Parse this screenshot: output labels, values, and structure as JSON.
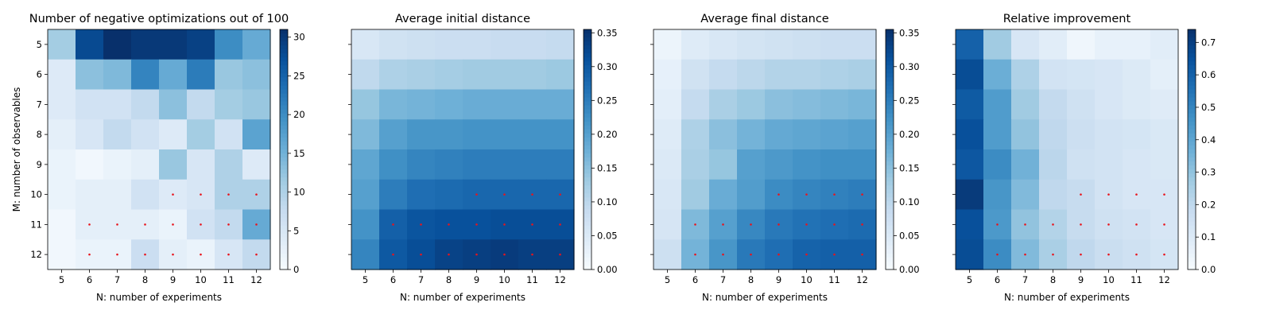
{
  "figure": {
    "colormap": "Blues",
    "marker_color": "#e8141c",
    "x_categories": [
      5,
      6,
      7,
      8,
      9,
      10,
      11,
      12
    ],
    "y_categories": [
      5,
      6,
      7,
      8,
      9,
      10,
      11,
      12
    ],
    "xlabel": "N: number of experiments",
    "ylabel": "M: number of observables"
  },
  "chart_data": [
    {
      "type": "heatmap",
      "title": "Number of negative optimizations out of 100",
      "xlabel": "N: number of experiments",
      "ylabel": "M: number of observables",
      "vmin": 0,
      "vmax": 31,
      "colorbar_ticks": [
        "0",
        "5",
        "10",
        "15",
        "20",
        "25",
        "30"
      ],
      "colorbar_tick_values": [
        0,
        5,
        10,
        15,
        20,
        25,
        30
      ],
      "values": [
        [
          11,
          28,
          31,
          30,
          30,
          29,
          20,
          16
        ],
        [
          4,
          13,
          14,
          21,
          16,
          22,
          12,
          13
        ],
        [
          4,
          6,
          6,
          8,
          13,
          8,
          11,
          12
        ],
        [
          3,
          5,
          8,
          6,
          4,
          11,
          6,
          17
        ],
        [
          2,
          1,
          2,
          3,
          12,
          5,
          10,
          4
        ],
        [
          2,
          3,
          3,
          6,
          4,
          5,
          10,
          10
        ],
        [
          1,
          3,
          3,
          3,
          2,
          6,
          8,
          16
        ],
        [
          1,
          2,
          2,
          7,
          3,
          2,
          5,
          8
        ]
      ],
      "markers": [
        [
          false,
          false,
          false,
          false,
          false,
          false,
          false,
          false
        ],
        [
          false,
          false,
          false,
          false,
          false,
          false,
          false,
          false
        ],
        [
          false,
          false,
          false,
          false,
          false,
          false,
          false,
          false
        ],
        [
          false,
          false,
          false,
          false,
          false,
          false,
          false,
          false
        ],
        [
          false,
          false,
          false,
          false,
          false,
          false,
          false,
          false
        ],
        [
          false,
          false,
          false,
          false,
          true,
          true,
          true,
          true
        ],
        [
          false,
          true,
          true,
          true,
          true,
          true,
          true,
          true
        ],
        [
          false,
          true,
          true,
          true,
          true,
          true,
          true,
          true
        ]
      ]
    },
    {
      "type": "heatmap",
      "title": "Average initial distance",
      "xlabel": "N: number of experiments",
      "ylabel": "",
      "vmin": 0,
      "vmax": 0.355,
      "colorbar_ticks": [
        "0.00",
        "0.05",
        "0.10",
        "0.15",
        "0.20",
        "0.25",
        "0.30",
        "0.35"
      ],
      "colorbar_tick_values": [
        0,
        0.05,
        0.1,
        0.15,
        0.2,
        0.25,
        0.3,
        0.35
      ],
      "values": [
        [
          0.055,
          0.07,
          0.075,
          0.08,
          0.08,
          0.085,
          0.085,
          0.09
        ],
        [
          0.095,
          0.115,
          0.12,
          0.125,
          0.13,
          0.13,
          0.13,
          0.135
        ],
        [
          0.14,
          0.165,
          0.17,
          0.175,
          0.18,
          0.18,
          0.18,
          0.18
        ],
        [
          0.16,
          0.2,
          0.215,
          0.215,
          0.22,
          0.22,
          0.22,
          0.22
        ],
        [
          0.19,
          0.225,
          0.24,
          0.245,
          0.25,
          0.25,
          0.25,
          0.25
        ],
        [
          0.2,
          0.25,
          0.27,
          0.275,
          0.28,
          0.28,
          0.28,
          0.28
        ],
        [
          0.22,
          0.29,
          0.305,
          0.31,
          0.31,
          0.315,
          0.315,
          0.315
        ],
        [
          0.24,
          0.3,
          0.315,
          0.33,
          0.335,
          0.34,
          0.335,
          0.335
        ]
      ],
      "markers": [
        [
          false,
          false,
          false,
          false,
          false,
          false,
          false,
          false
        ],
        [
          false,
          false,
          false,
          false,
          false,
          false,
          false,
          false
        ],
        [
          false,
          false,
          false,
          false,
          false,
          false,
          false,
          false
        ],
        [
          false,
          false,
          false,
          false,
          false,
          false,
          false,
          false
        ],
        [
          false,
          false,
          false,
          false,
          false,
          false,
          false,
          false
        ],
        [
          false,
          false,
          false,
          false,
          true,
          true,
          true,
          true
        ],
        [
          false,
          true,
          true,
          true,
          true,
          true,
          true,
          true
        ],
        [
          false,
          true,
          true,
          true,
          true,
          true,
          true,
          true
        ]
      ]
    },
    {
      "type": "heatmap",
      "title": "Average final distance",
      "xlabel": "N: number of experiments",
      "ylabel": "",
      "vmin": 0,
      "vmax": 0.355,
      "colorbar_ticks": [
        "0.00",
        "0.05",
        "0.10",
        "0.15",
        "0.20",
        "0.25",
        "0.30",
        "0.35"
      ],
      "colorbar_tick_values": [
        0,
        0.05,
        0.1,
        0.15,
        0.2,
        0.25,
        0.3,
        0.35
      ],
      "values": [
        [
          0.02,
          0.045,
          0.055,
          0.065,
          0.07,
          0.075,
          0.08,
          0.08
        ],
        [
          0.03,
          0.07,
          0.09,
          0.1,
          0.11,
          0.11,
          0.115,
          0.12
        ],
        [
          0.035,
          0.09,
          0.12,
          0.135,
          0.15,
          0.155,
          0.16,
          0.165
        ],
        [
          0.045,
          0.115,
          0.15,
          0.17,
          0.185,
          0.19,
          0.195,
          0.2
        ],
        [
          0.05,
          0.12,
          0.14,
          0.2,
          0.21,
          0.22,
          0.225,
          0.225
        ],
        [
          0.055,
          0.13,
          0.18,
          0.205,
          0.23,
          0.24,
          0.245,
          0.25
        ],
        [
          0.06,
          0.16,
          0.2,
          0.235,
          0.255,
          0.265,
          0.27,
          0.275
        ],
        [
          0.075,
          0.17,
          0.215,
          0.255,
          0.27,
          0.285,
          0.29,
          0.29
        ]
      ],
      "markers": [
        [
          false,
          false,
          false,
          false,
          false,
          false,
          false,
          false
        ],
        [
          false,
          false,
          false,
          false,
          false,
          false,
          false,
          false
        ],
        [
          false,
          false,
          false,
          false,
          false,
          false,
          false,
          false
        ],
        [
          false,
          false,
          false,
          false,
          false,
          false,
          false,
          false
        ],
        [
          false,
          false,
          false,
          false,
          false,
          false,
          false,
          false
        ],
        [
          false,
          false,
          false,
          false,
          true,
          true,
          true,
          true
        ],
        [
          false,
          true,
          true,
          true,
          true,
          true,
          true,
          true
        ],
        [
          false,
          true,
          true,
          true,
          true,
          true,
          true,
          true
        ]
      ]
    },
    {
      "type": "heatmap",
      "title": "Relative improvement",
      "xlabel": "N: number of experiments",
      "ylabel": "",
      "vmin": 0,
      "vmax": 0.74,
      "colorbar_ticks": [
        "0.0",
        "0.1",
        "0.2",
        "0.3",
        "0.4",
        "0.5",
        "0.6",
        "0.7"
      ],
      "colorbar_tick_values": [
        0,
        0.1,
        0.2,
        0.3,
        0.4,
        0.5,
        0.6,
        0.7
      ],
      "values": [
        [
          0.6,
          0.27,
          0.12,
          0.08,
          0.03,
          0.06,
          0.06,
          0.08
        ],
        [
          0.66,
          0.37,
          0.24,
          0.14,
          0.13,
          0.12,
          0.1,
          0.07
        ],
        [
          0.62,
          0.43,
          0.27,
          0.19,
          0.15,
          0.12,
          0.1,
          0.09
        ],
        [
          0.65,
          0.43,
          0.3,
          0.2,
          0.16,
          0.14,
          0.13,
          0.11
        ],
        [
          0.63,
          0.48,
          0.36,
          0.21,
          0.15,
          0.14,
          0.12,
          0.11
        ],
        [
          0.71,
          0.45,
          0.33,
          0.2,
          0.18,
          0.14,
          0.12,
          0.12
        ],
        [
          0.65,
          0.44,
          0.3,
          0.23,
          0.18,
          0.15,
          0.14,
          0.12
        ],
        [
          0.66,
          0.48,
          0.33,
          0.25,
          0.2,
          0.17,
          0.15,
          0.13
        ]
      ],
      "markers": [
        [
          false,
          false,
          false,
          false,
          false,
          false,
          false,
          false
        ],
        [
          false,
          false,
          false,
          false,
          false,
          false,
          false,
          false
        ],
        [
          false,
          false,
          false,
          false,
          false,
          false,
          false,
          false
        ],
        [
          false,
          false,
          false,
          false,
          false,
          false,
          false,
          false
        ],
        [
          false,
          false,
          false,
          false,
          false,
          false,
          false,
          false
        ],
        [
          false,
          false,
          false,
          false,
          true,
          true,
          true,
          true
        ],
        [
          false,
          true,
          true,
          true,
          true,
          true,
          true,
          true
        ],
        [
          false,
          true,
          true,
          true,
          true,
          true,
          true,
          true
        ]
      ]
    }
  ]
}
